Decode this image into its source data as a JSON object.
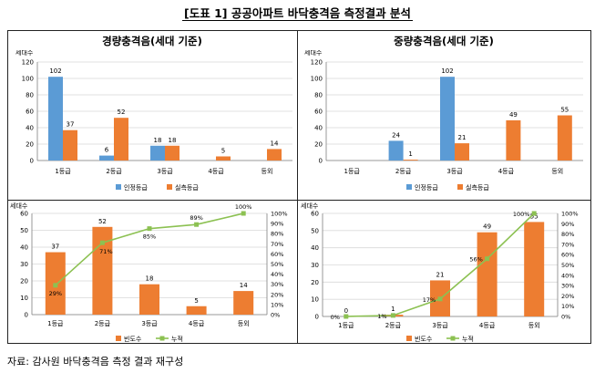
{
  "title": "[도표 1] 공공아파트 바닥충격음 측정결과 분석",
  "source": "자료: 감사원 바닥충격음 측정 결과 재구성",
  "colors": {
    "blue": "#5b9bd5",
    "orange": "#ed7d31",
    "green": "#8cc152",
    "grid": "#d9d9d9",
    "axis": "#808080"
  },
  "panels": {
    "light_title": "경량충격음(세대 기준)",
    "heavy_title": "중량충격음(세대 기준)"
  },
  "chart_data": [
    {
      "id": "light_bar",
      "type": "bar",
      "ylabel": "세대수",
      "ylim": [
        0,
        120
      ],
      "yticks": [
        0,
        20,
        40,
        60,
        80,
        100,
        120
      ],
      "categories": [
        "1등급",
        "2등급",
        "3등급",
        "4등급",
        "등외"
      ],
      "series": [
        {
          "name": "인정등급",
          "color": "#5b9bd5",
          "values": [
            102,
            6,
            18,
            null,
            null
          ]
        },
        {
          "name": "실측등급",
          "color": "#ed7d31",
          "values": [
            37,
            52,
            18,
            5,
            14
          ]
        }
      ]
    },
    {
      "id": "heavy_bar",
      "type": "bar",
      "ylabel": "세대수",
      "ylim": [
        0,
        120
      ],
      "yticks": [
        0,
        20,
        40,
        60,
        80,
        100,
        120
      ],
      "categories": [
        "1등급",
        "2등급",
        "3등급",
        "4등급",
        "등외"
      ],
      "series": [
        {
          "name": "인정등급",
          "color": "#5b9bd5",
          "values": [
            null,
            24,
            102,
            null,
            null
          ]
        },
        {
          "name": "실측등급",
          "color": "#ed7d31",
          "values": [
            null,
            1,
            21,
            49,
            55
          ]
        }
      ]
    },
    {
      "id": "light_pareto",
      "type": "bar",
      "ylabel": "세대수",
      "ylim": [
        0,
        60
      ],
      "yticks": [
        0,
        10,
        20,
        30,
        40,
        50,
        60
      ],
      "y2lim": [
        0,
        100
      ],
      "y2ticks": [
        "0%",
        "10%",
        "20%",
        "30%",
        "40%",
        "50%",
        "60%",
        "70%",
        "80%",
        "90%",
        "100%"
      ],
      "categories": [
        "1등급",
        "2등급",
        "3등급",
        "4등급",
        "등외"
      ],
      "bars": {
        "name": "빈도수",
        "values": [
          37,
          52,
          18,
          5,
          14
        ]
      },
      "line": {
        "name": "누적",
        "values": [
          29,
          71,
          85,
          89,
          100
        ],
        "labels": [
          "29%",
          "71%",
          "85%",
          "89%",
          "100%"
        ]
      }
    },
    {
      "id": "heavy_pareto",
      "type": "bar",
      "ylabel": "세대수",
      "ylim": [
        0,
        60
      ],
      "yticks": [
        0,
        10,
        20,
        30,
        40,
        50,
        60
      ],
      "y2lim": [
        0,
        100
      ],
      "y2ticks": [
        "0%",
        "10%",
        "20%",
        "30%",
        "40%",
        "50%",
        "60%",
        "70%",
        "80%",
        "90%",
        "100%"
      ],
      "categories": [
        "1등급",
        "2등급",
        "3등급",
        "4등급",
        "등외"
      ],
      "bars": {
        "name": "빈도수",
        "values": [
          0,
          1,
          21,
          49,
          55
        ]
      },
      "line": {
        "name": "누적",
        "values": [
          0,
          1,
          17,
          56,
          100
        ],
        "labels": [
          "0%",
          "1%",
          "17%",
          "56%",
          "100%"
        ]
      }
    }
  ]
}
